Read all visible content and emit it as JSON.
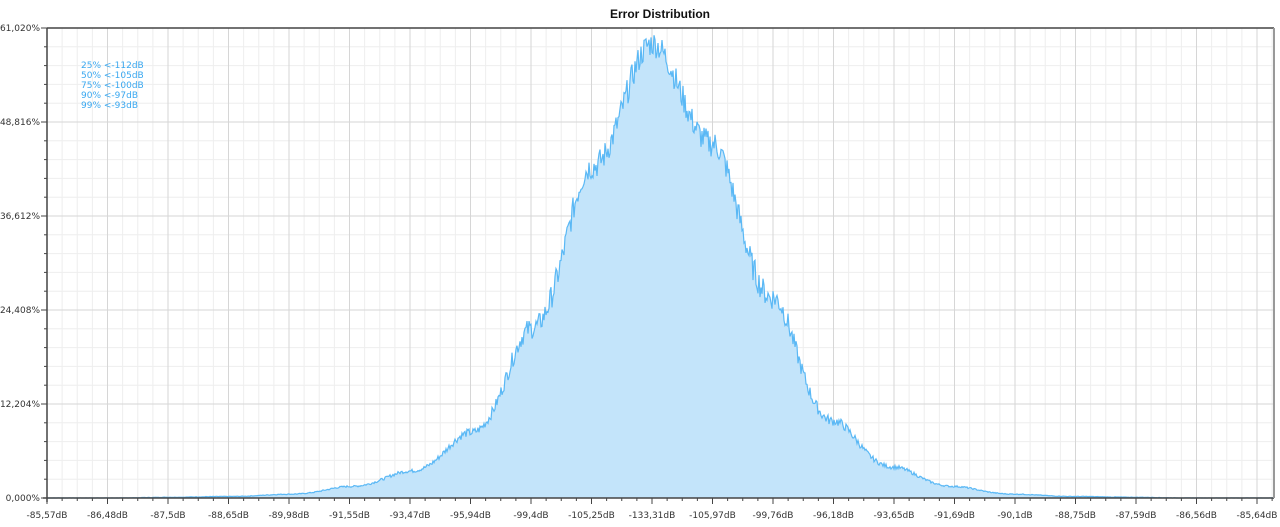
{
  "chart_data": {
    "type": "area",
    "title": "Error Distribution",
    "xlabel": "",
    "ylabel": "",
    "x_tick_labels": [
      "-85,57dB",
      "-86,48dB",
      "-87,5dB",
      "-88,65dB",
      "-89,98dB",
      "-91,55dB",
      "-93,47dB",
      "-95,94dB",
      "-99,4dB",
      "-105,25dB",
      "-133,31dB",
      "-105,97dB",
      "-99,76dB",
      "-96,18dB",
      "-93,65dB",
      "-91,69dB",
      "-90,1dB",
      "-88,75dB",
      "-87,59dB",
      "-86,56dB",
      "-85,64dB"
    ],
    "y_tick_labels": [
      "0,000%",
      "12,204%",
      "24,408%",
      "36,612%",
      "48,816%",
      "61,020%"
    ],
    "ylim": [
      0,
      61.02
    ],
    "grid": true,
    "series": [
      {
        "name": "Error Distribution",
        "color": "#5ab8f5",
        "fill": "#c3e4fa",
        "values": [
          0.0,
          0.0,
          0.1,
          0.2,
          0.5,
          1.5,
          3.5,
          8.5,
          22.0,
          43.0,
          59.0,
          46.0,
          26.0,
          10.0,
          4.0,
          1.5,
          0.5,
          0.2,
          0.1,
          0.0,
          0.0
        ]
      }
    ],
    "annotations": [
      "25% <-112dB",
      "50% <-105dB",
      "75% <-100dB",
      "90% <-97dB",
      "99% <-93dB"
    ]
  },
  "colors": {
    "line": "#5ab8f5",
    "fill": "#c3e4fa",
    "annotation": "#3aa8f0",
    "grid_major": "#d6d6d6",
    "grid_minor": "#eeeeee",
    "axis": "#444444"
  }
}
